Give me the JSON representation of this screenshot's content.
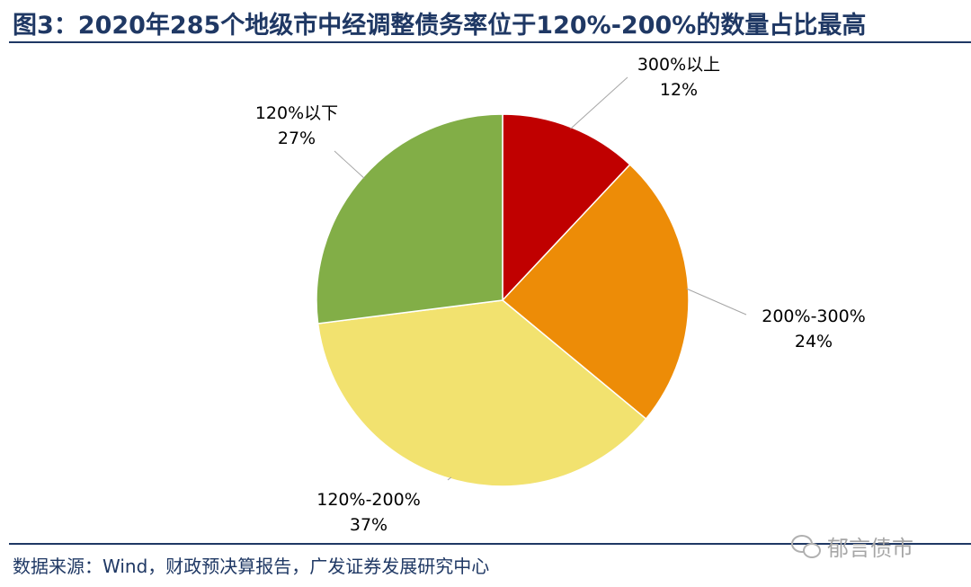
{
  "title": "图3：2020年285个地级市中经调整债务率位于120%-200%的数量占比最高",
  "source": "数据来源：Wind，财政预决算报告，广发证券发展研究中心",
  "watermark": "郁言债市",
  "chart_data": {
    "type": "pie",
    "slices": [
      {
        "label": "300%以上",
        "pct_label": "12%",
        "value": 12,
        "color": "#C00000"
      },
      {
        "label": "200%-300%",
        "pct_label": "24%",
        "value": 24,
        "color": "#ED8C07"
      },
      {
        "label": "120%-200%",
        "pct_label": "37%",
        "value": 37,
        "color": "#F2E26F"
      },
      {
        "label": "120%以下",
        "pct_label": "27%",
        "value": 27,
        "color": "#82AE47"
      }
    ],
    "start_angle": "12 o'clock",
    "direction": "clockwise",
    "legend": "none (labels outside with leader lines)"
  }
}
